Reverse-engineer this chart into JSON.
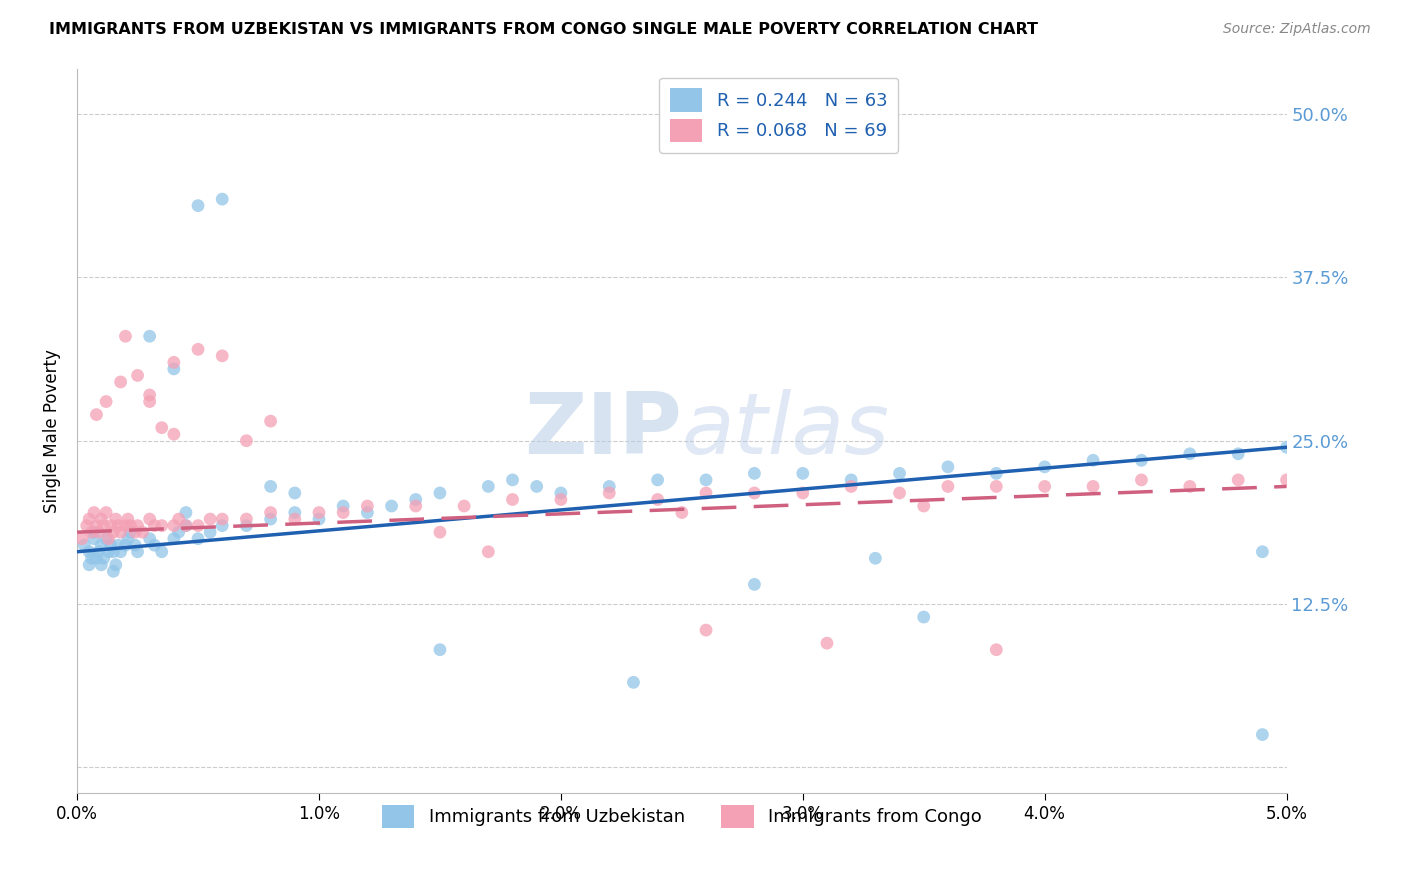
{
  "title": "IMMIGRANTS FROM UZBEKISTAN VS IMMIGRANTS FROM CONGO SINGLE MALE POVERTY CORRELATION CHART",
  "source": "Source: ZipAtlas.com",
  "ylabel": "Single Male Poverty",
  "xlim": [
    0.0,
    0.05
  ],
  "ylim": [
    -0.02,
    0.535
  ],
  "yticks": [
    0.0,
    0.125,
    0.25,
    0.375,
    0.5
  ],
  "ytick_labels": [
    "",
    "12.5%",
    "25.0%",
    "37.5%",
    "50.0%"
  ],
  "xticks": [
    0.0,
    0.01,
    0.02,
    0.03,
    0.04,
    0.05
  ],
  "xtick_labels": [
    "0.0%",
    "1.0%",
    "2.0%",
    "3.0%",
    "4.0%",
    "5.0%"
  ],
  "legend_label1": "R = 0.244   N = 63",
  "legend_label2": "R = 0.068   N = 69",
  "legend_bottom1": "Immigrants from Uzbekistan",
  "legend_bottom2": "Immigrants from Congo",
  "watermark_zip": "ZIP",
  "watermark_atlas": "atlas",
  "uzbekistan_color": "#92C5E8",
  "congo_color": "#F4A0B5",
  "uzbekistan_line_color": "#2060B0",
  "congo_line_color": "#D06080",
  "uzbekistan_x": [
    0.0003,
    0.0005,
    0.0005,
    0.0006,
    0.0007,
    0.0007,
    0.0008,
    0.0009,
    0.001,
    0.001,
    0.0011,
    0.0012,
    0.0013,
    0.0014,
    0.0015,
    0.0015,
    0.0016,
    0.0017,
    0.0018,
    0.002,
    0.0021,
    0.0022,
    0.0024,
    0.0025,
    0.003,
    0.0032,
    0.0035,
    0.004,
    0.0042,
    0.0045,
    0.005,
    0.0055,
    0.006,
    0.007,
    0.008,
    0.009,
    0.01,
    0.011,
    0.012,
    0.013,
    0.014,
    0.015,
    0.017,
    0.018,
    0.019,
    0.02,
    0.022,
    0.024,
    0.026,
    0.028,
    0.03,
    0.032,
    0.034,
    0.036,
    0.038,
    0.04,
    0.042,
    0.044,
    0.046,
    0.048,
    0.05,
    0.028,
    0.033
  ],
  "uzbekistan_y": [
    0.17,
    0.165,
    0.155,
    0.16,
    0.18,
    0.175,
    0.16,
    0.165,
    0.17,
    0.155,
    0.16,
    0.175,
    0.165,
    0.17,
    0.165,
    0.15,
    0.155,
    0.17,
    0.165,
    0.17,
    0.175,
    0.18,
    0.17,
    0.165,
    0.175,
    0.17,
    0.165,
    0.175,
    0.18,
    0.185,
    0.175,
    0.18,
    0.185,
    0.185,
    0.19,
    0.195,
    0.19,
    0.2,
    0.195,
    0.2,
    0.205,
    0.21,
    0.215,
    0.22,
    0.215,
    0.21,
    0.215,
    0.22,
    0.22,
    0.225,
    0.225,
    0.22,
    0.225,
    0.23,
    0.225,
    0.23,
    0.235,
    0.235,
    0.24,
    0.24,
    0.245,
    0.14,
    0.16
  ],
  "uzbekistan_y_outliers": [
    0.43,
    0.435,
    0.33,
    0.305,
    0.215,
    0.21,
    0.195,
    0.49,
    0.165,
    0.09,
    0.065,
    0.115,
    0.025
  ],
  "uzbekistan_x_outliers": [
    0.005,
    0.006,
    0.003,
    0.004,
    0.008,
    0.009,
    0.0045,
    0.031,
    0.049,
    0.015,
    0.023,
    0.035,
    0.049
  ],
  "congo_x": [
    0.0002,
    0.0004,
    0.0005,
    0.0006,
    0.0007,
    0.0008,
    0.0009,
    0.001,
    0.0011,
    0.0012,
    0.0013,
    0.0014,
    0.0015,
    0.0016,
    0.0017,
    0.0018,
    0.002,
    0.0021,
    0.0022,
    0.0024,
    0.0025,
    0.0027,
    0.003,
    0.0032,
    0.0035,
    0.004,
    0.0042,
    0.0045,
    0.005,
    0.0055,
    0.006,
    0.007,
    0.008,
    0.009,
    0.01,
    0.011,
    0.012,
    0.014,
    0.016,
    0.018,
    0.02,
    0.022,
    0.024,
    0.026,
    0.028,
    0.03,
    0.032,
    0.034,
    0.036,
    0.038,
    0.04,
    0.042,
    0.044,
    0.046,
    0.048,
    0.05,
    0.015,
    0.025,
    0.035,
    0.0008,
    0.0012,
    0.0018,
    0.0025,
    0.003,
    0.004,
    0.005,
    0.006,
    0.007,
    0.008
  ],
  "congo_y": [
    0.175,
    0.185,
    0.19,
    0.18,
    0.195,
    0.185,
    0.18,
    0.19,
    0.185,
    0.195,
    0.175,
    0.185,
    0.18,
    0.19,
    0.185,
    0.18,
    0.185,
    0.19,
    0.185,
    0.18,
    0.185,
    0.18,
    0.19,
    0.185,
    0.185,
    0.185,
    0.19,
    0.185,
    0.185,
    0.19,
    0.19,
    0.19,
    0.195,
    0.19,
    0.195,
    0.195,
    0.2,
    0.2,
    0.2,
    0.205,
    0.205,
    0.21,
    0.205,
    0.21,
    0.21,
    0.21,
    0.215,
    0.21,
    0.215,
    0.215,
    0.215,
    0.215,
    0.22,
    0.215,
    0.22,
    0.22,
    0.18,
    0.195,
    0.2,
    0.27,
    0.28,
    0.295,
    0.3,
    0.285,
    0.31,
    0.32,
    0.315,
    0.25,
    0.265
  ],
  "congo_y_outliers": [
    0.33,
    0.28,
    0.26,
    0.255,
    0.165,
    0.105,
    0.095,
    0.09
  ],
  "congo_x_outliers": [
    0.002,
    0.003,
    0.0035,
    0.004,
    0.017,
    0.026,
    0.031,
    0.038
  ],
  "trend_uz_x0": 0.0,
  "trend_uz_y0": 0.165,
  "trend_uz_x1": 0.05,
  "trend_uz_y1": 0.245,
  "trend_cg_x0": 0.0,
  "trend_cg_y0": 0.18,
  "trend_cg_x1": 0.05,
  "trend_cg_y1": 0.215
}
